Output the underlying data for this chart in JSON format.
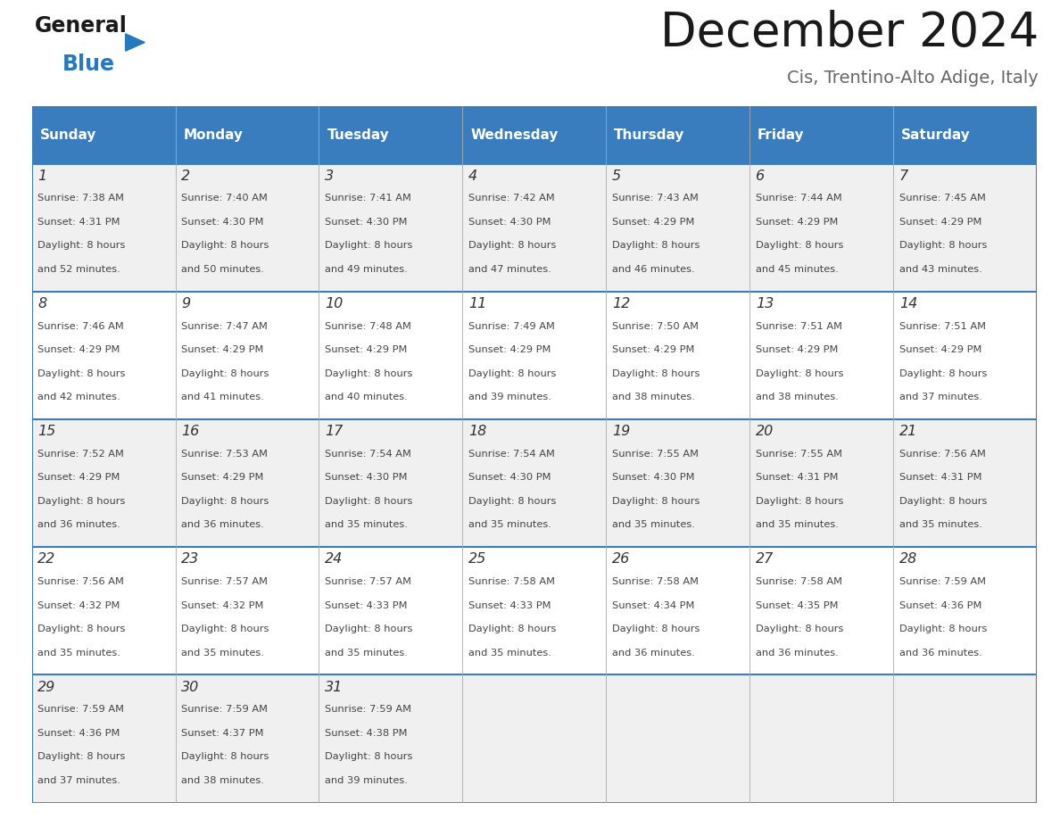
{
  "title": "December 2024",
  "subtitle": "Cis, Trentino-Alto Adige, Italy",
  "header_bg_color": "#3a7dbf",
  "header_text_color": "#ffffff",
  "row_bg_even": "#f0f0f0",
  "row_bg_odd": "#ffffff",
  "border_color": "#3a7dbf",
  "cell_line_color": "#aaaaaa",
  "day_names": [
    "Sunday",
    "Monday",
    "Tuesday",
    "Wednesday",
    "Thursday",
    "Friday",
    "Saturday"
  ],
  "days": [
    {
      "day": 1,
      "col": 0,
      "row": 0,
      "sunrise": "7:38 AM",
      "sunset": "4:31 PM",
      "dl_min": "52"
    },
    {
      "day": 2,
      "col": 1,
      "row": 0,
      "sunrise": "7:40 AM",
      "sunset": "4:30 PM",
      "dl_min": "50"
    },
    {
      "day": 3,
      "col": 2,
      "row": 0,
      "sunrise": "7:41 AM",
      "sunset": "4:30 PM",
      "dl_min": "49"
    },
    {
      "day": 4,
      "col": 3,
      "row": 0,
      "sunrise": "7:42 AM",
      "sunset": "4:30 PM",
      "dl_min": "47"
    },
    {
      "day": 5,
      "col": 4,
      "row": 0,
      "sunrise": "7:43 AM",
      "sunset": "4:29 PM",
      "dl_min": "46"
    },
    {
      "day": 6,
      "col": 5,
      "row": 0,
      "sunrise": "7:44 AM",
      "sunset": "4:29 PM",
      "dl_min": "45"
    },
    {
      "day": 7,
      "col": 6,
      "row": 0,
      "sunrise": "7:45 AM",
      "sunset": "4:29 PM",
      "dl_min": "43"
    },
    {
      "day": 8,
      "col": 0,
      "row": 1,
      "sunrise": "7:46 AM",
      "sunset": "4:29 PM",
      "dl_min": "42"
    },
    {
      "day": 9,
      "col": 1,
      "row": 1,
      "sunrise": "7:47 AM",
      "sunset": "4:29 PM",
      "dl_min": "41"
    },
    {
      "day": 10,
      "col": 2,
      "row": 1,
      "sunrise": "7:48 AM",
      "sunset": "4:29 PM",
      "dl_min": "40"
    },
    {
      "day": 11,
      "col": 3,
      "row": 1,
      "sunrise": "7:49 AM",
      "sunset": "4:29 PM",
      "dl_min": "39"
    },
    {
      "day": 12,
      "col": 4,
      "row": 1,
      "sunrise": "7:50 AM",
      "sunset": "4:29 PM",
      "dl_min": "38"
    },
    {
      "day": 13,
      "col": 5,
      "row": 1,
      "sunrise": "7:51 AM",
      "sunset": "4:29 PM",
      "dl_min": "38"
    },
    {
      "day": 14,
      "col": 6,
      "row": 1,
      "sunrise": "7:51 AM",
      "sunset": "4:29 PM",
      "dl_min": "37"
    },
    {
      "day": 15,
      "col": 0,
      "row": 2,
      "sunrise": "7:52 AM",
      "sunset": "4:29 PM",
      "dl_min": "36"
    },
    {
      "day": 16,
      "col": 1,
      "row": 2,
      "sunrise": "7:53 AM",
      "sunset": "4:29 PM",
      "dl_min": "36"
    },
    {
      "day": 17,
      "col": 2,
      "row": 2,
      "sunrise": "7:54 AM",
      "sunset": "4:30 PM",
      "dl_min": "35"
    },
    {
      "day": 18,
      "col": 3,
      "row": 2,
      "sunrise": "7:54 AM",
      "sunset": "4:30 PM",
      "dl_min": "35"
    },
    {
      "day": 19,
      "col": 4,
      "row": 2,
      "sunrise": "7:55 AM",
      "sunset": "4:30 PM",
      "dl_min": "35"
    },
    {
      "day": 20,
      "col": 5,
      "row": 2,
      "sunrise": "7:55 AM",
      "sunset": "4:31 PM",
      "dl_min": "35"
    },
    {
      "day": 21,
      "col": 6,
      "row": 2,
      "sunrise": "7:56 AM",
      "sunset": "4:31 PM",
      "dl_min": "35"
    },
    {
      "day": 22,
      "col": 0,
      "row": 3,
      "sunrise": "7:56 AM",
      "sunset": "4:32 PM",
      "dl_min": "35"
    },
    {
      "day": 23,
      "col": 1,
      "row": 3,
      "sunrise": "7:57 AM",
      "sunset": "4:32 PM",
      "dl_min": "35"
    },
    {
      "day": 24,
      "col": 2,
      "row": 3,
      "sunrise": "7:57 AM",
      "sunset": "4:33 PM",
      "dl_min": "35"
    },
    {
      "day": 25,
      "col": 3,
      "row": 3,
      "sunrise": "7:58 AM",
      "sunset": "4:33 PM",
      "dl_min": "35"
    },
    {
      "day": 26,
      "col": 4,
      "row": 3,
      "sunrise": "7:58 AM",
      "sunset": "4:34 PM",
      "dl_min": "36"
    },
    {
      "day": 27,
      "col": 5,
      "row": 3,
      "sunrise": "7:58 AM",
      "sunset": "4:35 PM",
      "dl_min": "36"
    },
    {
      "day": 28,
      "col": 6,
      "row": 3,
      "sunrise": "7:59 AM",
      "sunset": "4:36 PM",
      "dl_min": "36"
    },
    {
      "day": 29,
      "col": 0,
      "row": 4,
      "sunrise": "7:59 AM",
      "sunset": "4:36 PM",
      "dl_min": "37"
    },
    {
      "day": 30,
      "col": 1,
      "row": 4,
      "sunrise": "7:59 AM",
      "sunset": "4:37 PM",
      "dl_min": "38"
    },
    {
      "day": 31,
      "col": 2,
      "row": 4,
      "sunrise": "7:59 AM",
      "sunset": "4:38 PM",
      "dl_min": "39"
    }
  ],
  "num_rows": 5,
  "num_cols": 7,
  "logo_general_color": "#1a1a1a",
  "logo_blue_color": "#2579be",
  "title_color": "#1a1a1a",
  "subtitle_color": "#666666"
}
